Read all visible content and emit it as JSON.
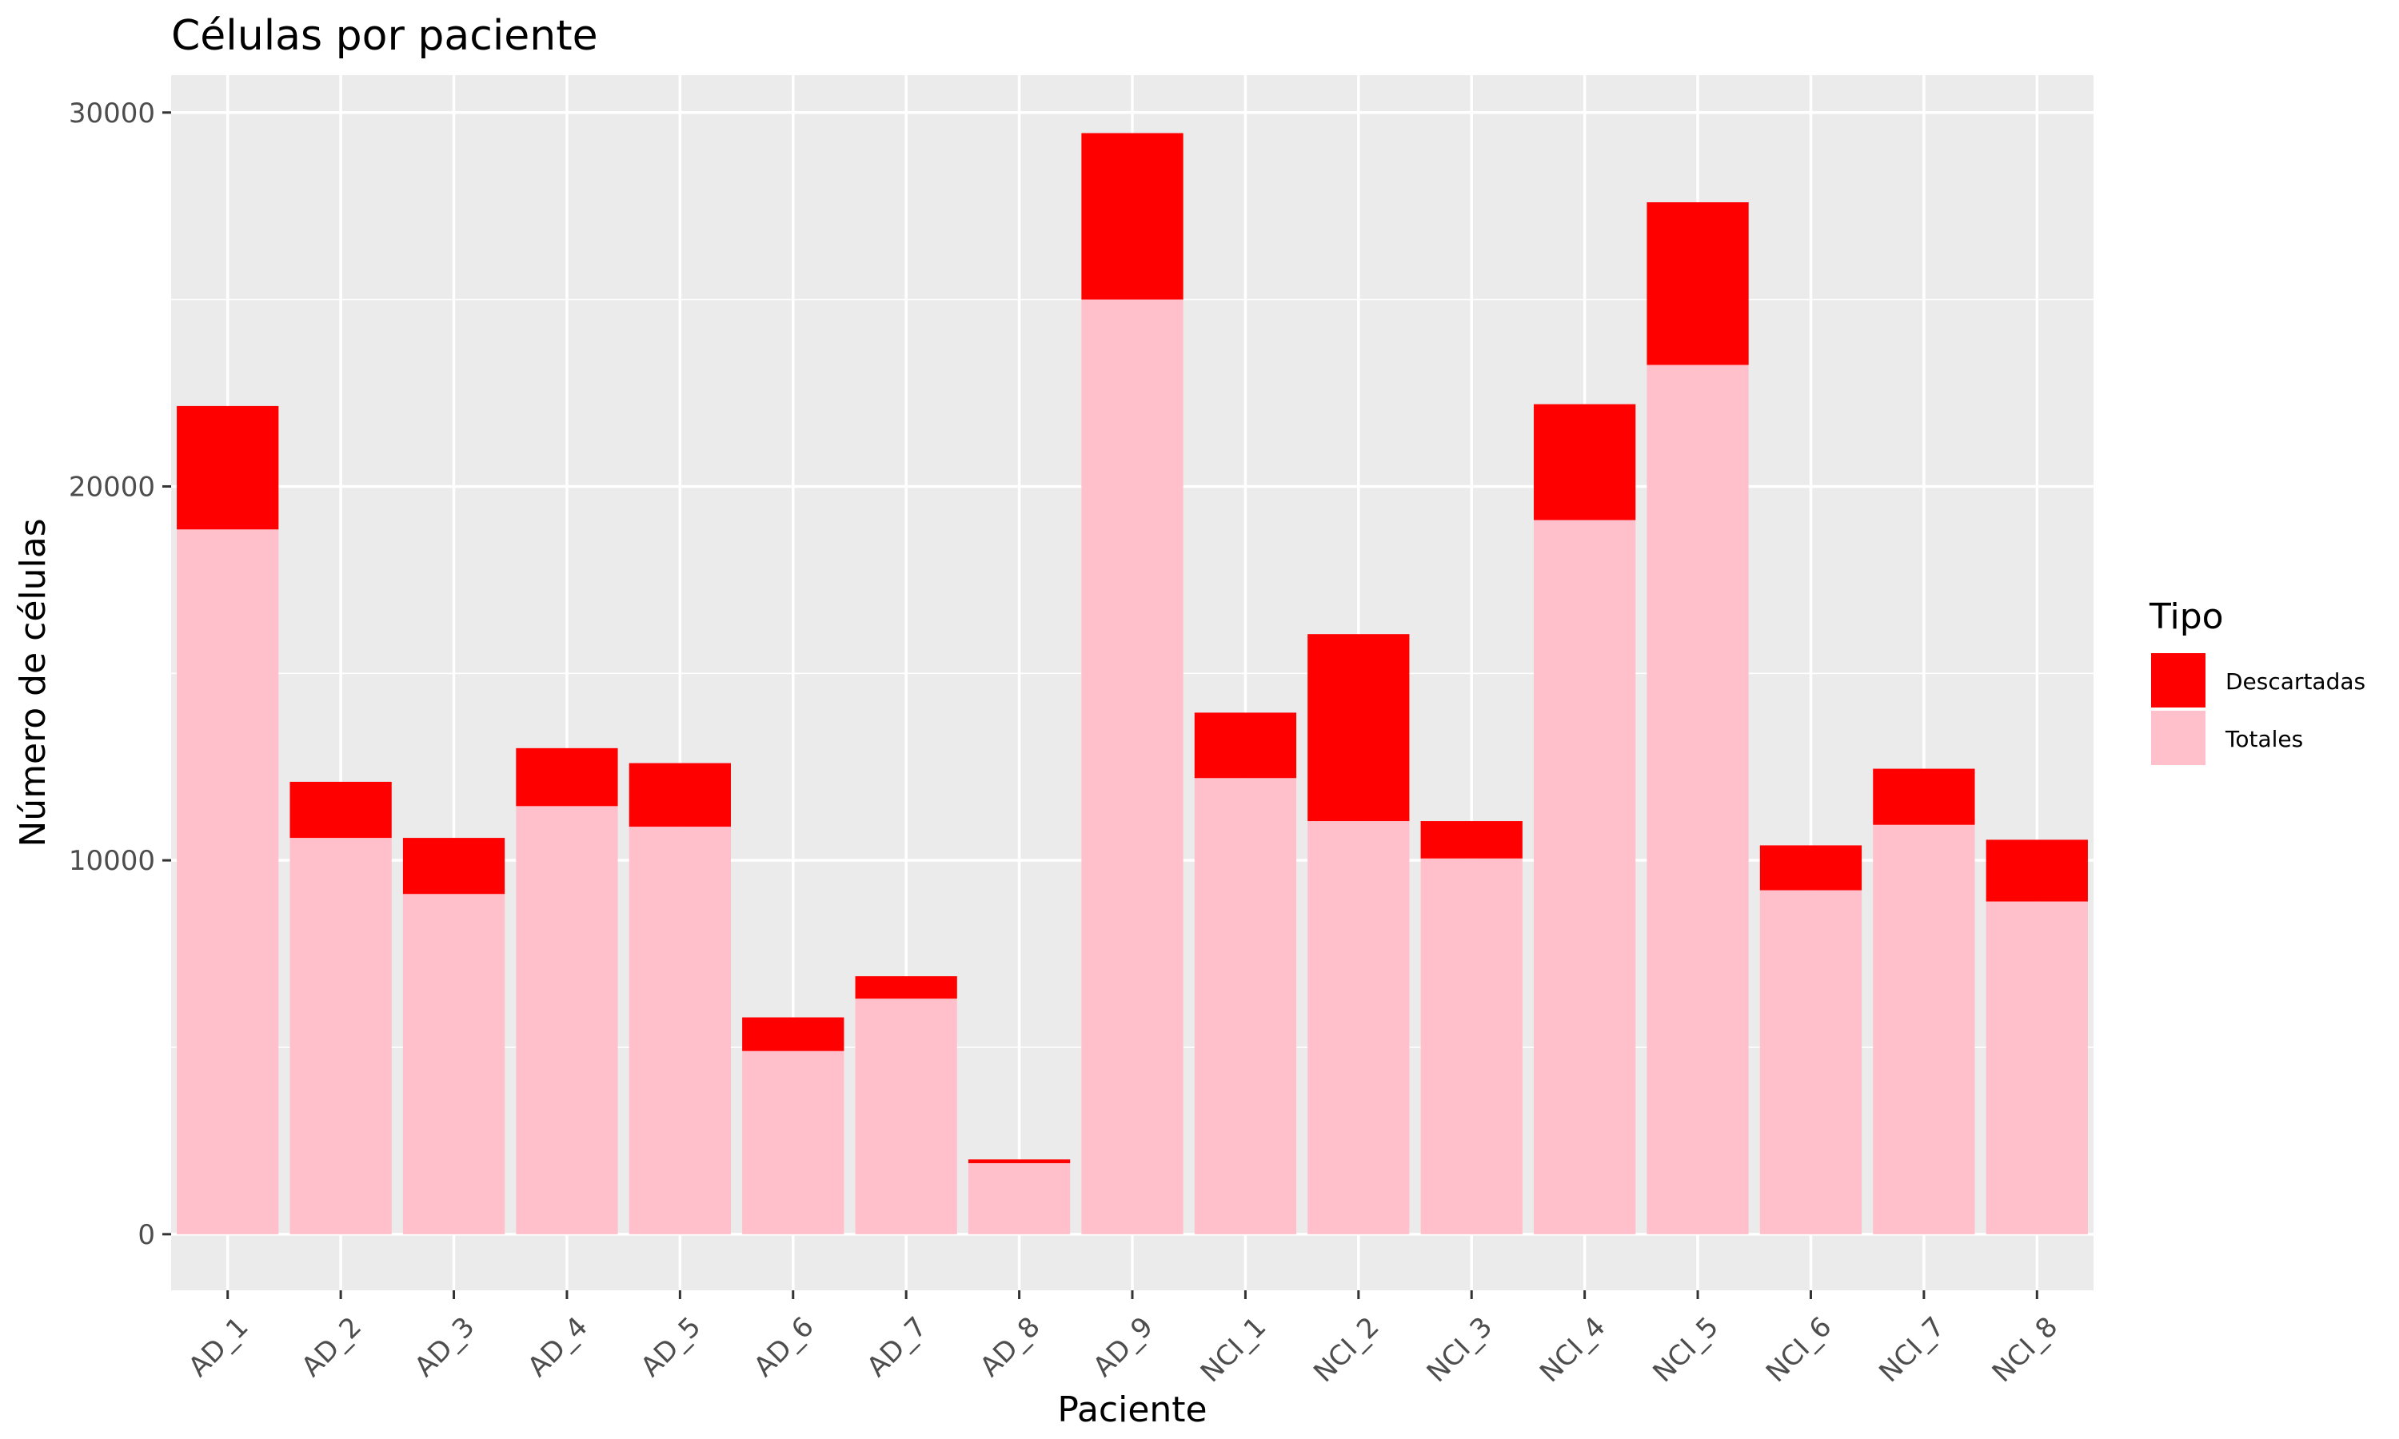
{
  "chart_data": {
    "type": "bar",
    "stacked": true,
    "title": "Células por paciente",
    "xlabel": "Paciente",
    "ylabel": "Número de células",
    "ylim": [
      -1500,
      31000
    ],
    "yticks": [
      0,
      10000,
      20000,
      30000
    ],
    "grid": true,
    "legend": {
      "title": "Tipo",
      "placement": "right"
    },
    "categories": [
      "AD_1",
      "AD_2",
      "AD_3",
      "AD_4",
      "AD_5",
      "AD_6",
      "AD_7",
      "AD_8",
      "AD_9",
      "NCI_1",
      "NCI_2",
      "NCI_3",
      "NCI_4",
      "NCI_5",
      "NCI_6",
      "NCI_7",
      "NCI_8"
    ],
    "series": [
      {
        "name": "Totales",
        "color": "#FFC0CB",
        "values": [
          18850,
          10600,
          9100,
          11450,
          10900,
          4900,
          6300,
          1900,
          25000,
          12200,
          11050,
          10050,
          19100,
          23250,
          9200,
          10950,
          8900
        ]
      },
      {
        "name": "Descartadas",
        "color": "#FF0000",
        "values": [
          3300,
          1500,
          1500,
          1550,
          1700,
          900,
          600,
          100,
          4450,
          1750,
          5000,
          1000,
          3100,
          4350,
          1200,
          1500,
          1650
        ]
      }
    ]
  }
}
